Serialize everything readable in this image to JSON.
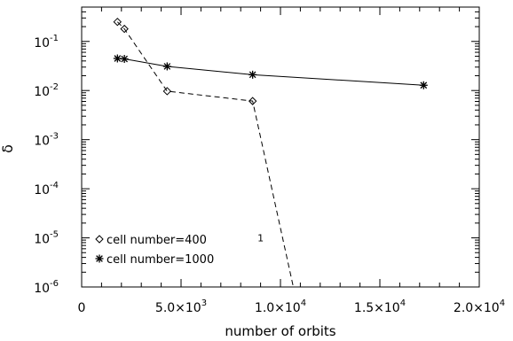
{
  "chart_data": {
    "type": "line",
    "title": "",
    "xlabel": "number of orbits",
    "ylabel": "δ",
    "xlim": [
      0,
      20000
    ],
    "ylim": [
      1e-06,
      0.5
    ],
    "yscale": "log",
    "grid": false,
    "legend_position": "bottom-left",
    "x_ticks": [
      {
        "value": 0,
        "mantissa": "0",
        "exponent": ""
      },
      {
        "value": 5000,
        "mantissa": "5.0×10",
        "exponent": "3"
      },
      {
        "value": 10000,
        "mantissa": "1.0×10",
        "exponent": "4"
      },
      {
        "value": 15000,
        "mantissa": "1.5×10",
        "exponent": "4"
      },
      {
        "value": 20000,
        "mantissa": "2.0×10",
        "exponent": "4"
      }
    ],
    "y_ticks": [
      {
        "value": 0.1,
        "base": "10",
        "exponent": "-1"
      },
      {
        "value": 0.01,
        "base": "10",
        "exponent": "-2"
      },
      {
        "value": 0.001,
        "base": "10",
        "exponent": "-3"
      },
      {
        "value": 0.0001,
        "base": "10",
        "exponent": "-4"
      },
      {
        "value": 1e-05,
        "base": "10",
        "exponent": "-5"
      },
      {
        "value": 1e-06,
        "base": "10",
        "exponent": "-6"
      }
    ],
    "series": [
      {
        "name": "cell number=400",
        "marker": "diamond",
        "line_style": "dashed",
        "x": [
          1800,
          2150,
          4300,
          8600,
          10700
        ],
        "y": [
          0.25,
          0.18,
          0.0097,
          0.0061,
          8e-07
        ],
        "marked": [
          true,
          true,
          true,
          true,
          false
        ]
      },
      {
        "name": "cell number=1000",
        "marker": "asterisk",
        "line_style": "solid",
        "x": [
          1800,
          2150,
          4300,
          8600,
          17200
        ],
        "y": [
          0.045,
          0.044,
          0.031,
          0.021,
          0.0128
        ],
        "marked": [
          true,
          true,
          true,
          true,
          true
        ]
      }
    ],
    "annotations": [
      {
        "text": "1",
        "x": 9000,
        "y": 8.5e-06
      }
    ]
  }
}
